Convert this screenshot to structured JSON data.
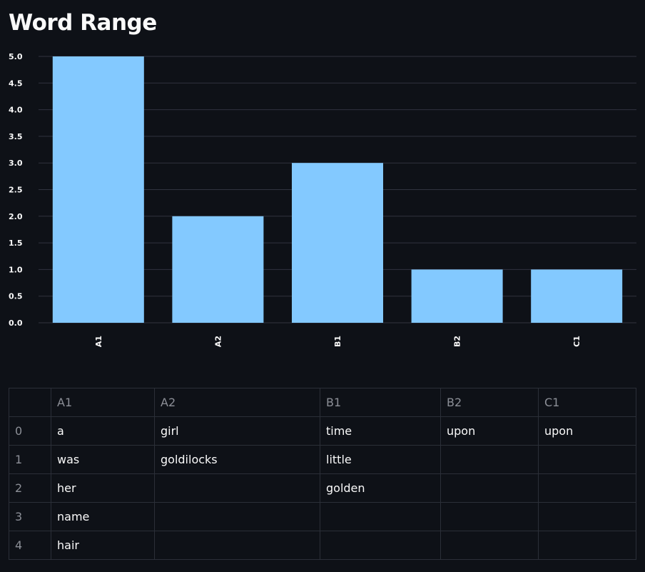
{
  "page": {
    "title": "Word Range"
  },
  "chart_data": {
    "type": "bar",
    "categories": [
      "A1",
      "A2",
      "B1",
      "B2",
      "C1"
    ],
    "values": [
      5,
      2,
      3,
      1,
      1
    ],
    "ylim": [
      0,
      5
    ],
    "yticks": [
      "0.0",
      "0.5",
      "1.0",
      "1.5",
      "2.0",
      "2.5",
      "3.0",
      "3.5",
      "4.0",
      "4.5",
      "5.0"
    ],
    "grid": true,
    "bar_color": "#83c9ff"
  },
  "table": {
    "columns": [
      "",
      "A1",
      "A2",
      "B1",
      "B2",
      "C1"
    ],
    "rows": [
      [
        "0",
        "a",
        "girl",
        "time",
        "upon",
        "upon"
      ],
      [
        "1",
        "was",
        "goldilocks",
        "little",
        "",
        ""
      ],
      [
        "2",
        "her",
        "",
        "golden",
        "",
        ""
      ],
      [
        "3",
        "name",
        "",
        "",
        "",
        ""
      ],
      [
        "4",
        "hair",
        "",
        "",
        "",
        ""
      ]
    ]
  }
}
